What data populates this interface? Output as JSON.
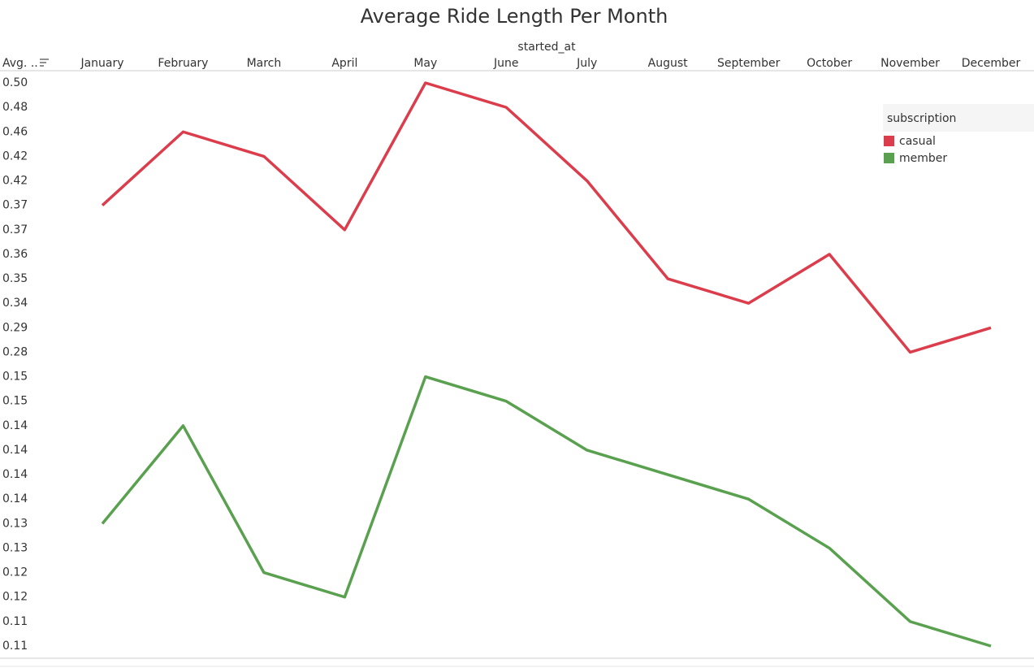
{
  "chart_data": {
    "type": "line",
    "title": "Average Ride Length Per Month",
    "x_label": "started_at",
    "y_label": "Avg. ..",
    "categories": [
      "January",
      "February",
      "March",
      "April",
      "May",
      "June",
      "July",
      "August",
      "September",
      "October",
      "November",
      "December"
    ],
    "yticks": [
      {
        "value": 0.5,
        "label": "0.50"
      },
      0.48,
      0.46,
      0.42,
      0.42,
      0.37,
      0.37,
      0.36,
      0.35,
      0.34,
      0.29,
      0.28,
      0.15,
      0.15,
      0.14,
      0.14,
      0.14,
      0.14,
      0.13,
      0.13,
      0.12,
      0.12,
      0.11,
      0.11
    ],
    "legend_title": "subscription",
    "legend_position": "top-right",
    "series": [
      {
        "name": "casual",
        "color": "#dc3d4c",
        "values": [
          0.37,
          0.46,
          0.42,
          0.37,
          0.5,
          0.48,
          0.42,
          0.35,
          0.34,
          0.36,
          0.28,
          0.29
        ]
      },
      {
        "name": "member",
        "color": "#59a14f",
        "values": [
          0.13,
          0.14,
          0.12,
          0.12,
          0.15,
          0.15,
          0.14,
          0.14,
          0.14,
          0.13,
          0.11,
          0.11
        ]
      }
    ]
  }
}
